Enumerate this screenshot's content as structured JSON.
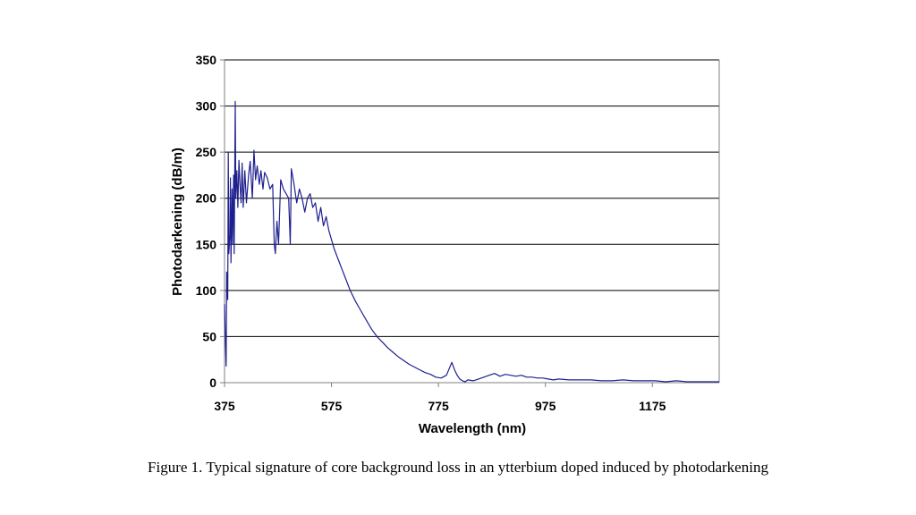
{
  "caption": "Figure 1. Typical signature of core background loss in an ytterbium doped induced by photodarkening",
  "colors": {
    "line": "#1f1f8f",
    "grid": "#000000",
    "axis": "#808080"
  },
  "chart_data": {
    "type": "line",
    "xlabel": "Wavelength (nm)",
    "ylabel": "Photodarkening (dB/m)",
    "xlim": [
      375,
      1300
    ],
    "ylim": [
      0,
      350
    ],
    "xticks": [
      375,
      575,
      775,
      975,
      1175
    ],
    "yticks": [
      0,
      50,
      100,
      150,
      200,
      250,
      300,
      350
    ],
    "grid": "horizontal",
    "legend": "none",
    "series": [
      {
        "x": [
          375,
          376,
          378,
          379,
          381,
          382,
          383,
          385,
          386,
          387,
          389,
          390,
          392,
          393,
          395,
          396,
          398,
          400,
          402,
          404,
          406,
          408,
          410,
          413,
          416,
          420,
          423,
          427,
          430,
          433,
          436,
          440,
          443,
          447,
          450,
          455,
          460,
          465,
          468,
          470,
          473,
          476,
          480,
          485,
          490,
          495,
          498,
          500,
          505,
          510,
          515,
          520,
          525,
          530,
          535,
          540,
          545,
          550,
          555,
          560,
          565,
          570,
          575,
          580,
          590,
          600,
          610,
          620,
          630,
          640,
          650,
          660,
          670,
          680,
          690,
          700,
          710,
          720,
          730,
          740,
          750,
          760,
          770,
          780,
          790,
          800,
          805,
          810,
          815,
          820,
          825,
          830,
          840,
          850,
          860,
          870,
          880,
          890,
          900,
          910,
          920,
          930,
          940,
          950,
          960,
          970,
          980,
          990,
          1000,
          1020,
          1040,
          1060,
          1080,
          1100,
          1120,
          1140,
          1160,
          1180,
          1200,
          1220,
          1240,
          1260,
          1280,
          1300
        ],
        "y": [
          85,
          60,
          18,
          120,
          90,
          250,
          140,
          160,
          222,
          130,
          210,
          150,
          225,
          140,
          305,
          200,
          230,
          190,
          241,
          215,
          195,
          238,
          190,
          230,
          195,
          225,
          240,
          200,
          252,
          220,
          235,
          215,
          230,
          210,
          228,
          222,
          210,
          215,
          150,
          140,
          175,
          150,
          220,
          210,
          205,
          200,
          150,
          232,
          215,
          195,
          210,
          200,
          185,
          200,
          205,
          190,
          195,
          175,
          190,
          170,
          180,
          165,
          155,
          145,
          130,
          115,
          100,
          88,
          78,
          68,
          58,
          50,
          44,
          38,
          33,
          28,
          24,
          20,
          17,
          14,
          11,
          9,
          6,
          5,
          8,
          22,
          14,
          8,
          4,
          2,
          1,
          3,
          2,
          4,
          6,
          8,
          10,
          7,
          9,
          8,
          7,
          8,
          6,
          6,
          5,
          5,
          4,
          3,
          4,
          3,
          3,
          3,
          2,
          2,
          3,
          2,
          2,
          2,
          1,
          2,
          1,
          1,
          1,
          1
        ]
      }
    ]
  }
}
